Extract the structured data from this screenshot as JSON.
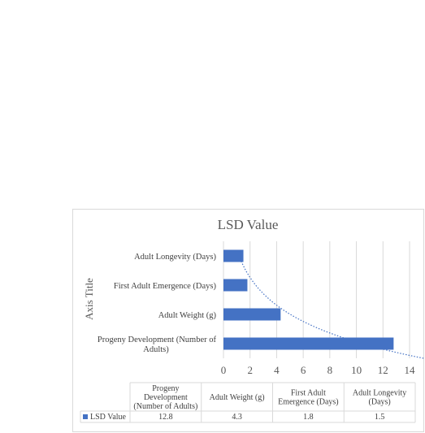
{
  "chart_data": {
    "type": "bar",
    "orientation": "horizontal",
    "title": "LSD Value",
    "ylabel": "Axis Title",
    "categories": [
      "Progeny Development (Number of Adults)",
      "Adult Weight (g)",
      "First Adult Emergence (Days)",
      "Adult Longevity (Days)"
    ],
    "category_labels_wrapped": [
      [
        "Progeny Development (Number of",
        "Adults)"
      ],
      [
        "Adult Weight (g)"
      ],
      [
        "First Adult Emergence (Days)"
      ],
      [
        "Adult Longevity (Days)"
      ]
    ],
    "series": [
      {
        "name": "LSD Value",
        "values": [
          12.8,
          4.3,
          1.8,
          1.5
        ],
        "value_labels": [
          "12.8",
          "4.3",
          "1.8",
          "1.5"
        ]
      }
    ],
    "xlim": [
      0,
      14
    ],
    "xticks": [
      0,
      2,
      4,
      6,
      8,
      10,
      12,
      14
    ],
    "grid": true,
    "trendline": "exponential, dotted",
    "data_table": {
      "headers": [
        [
          "Progeny",
          "Development",
          "(Number of Adults)"
        ],
        [
          "Adult Weight (g)"
        ],
        [
          "First Adult",
          "Emergence (Days)"
        ],
        [
          "Adult Longevity",
          "(Days)"
        ]
      ]
    },
    "colors": {
      "bar": "#4472c4",
      "trend": "#4472c4",
      "grid": "#d9d9d9"
    }
  }
}
